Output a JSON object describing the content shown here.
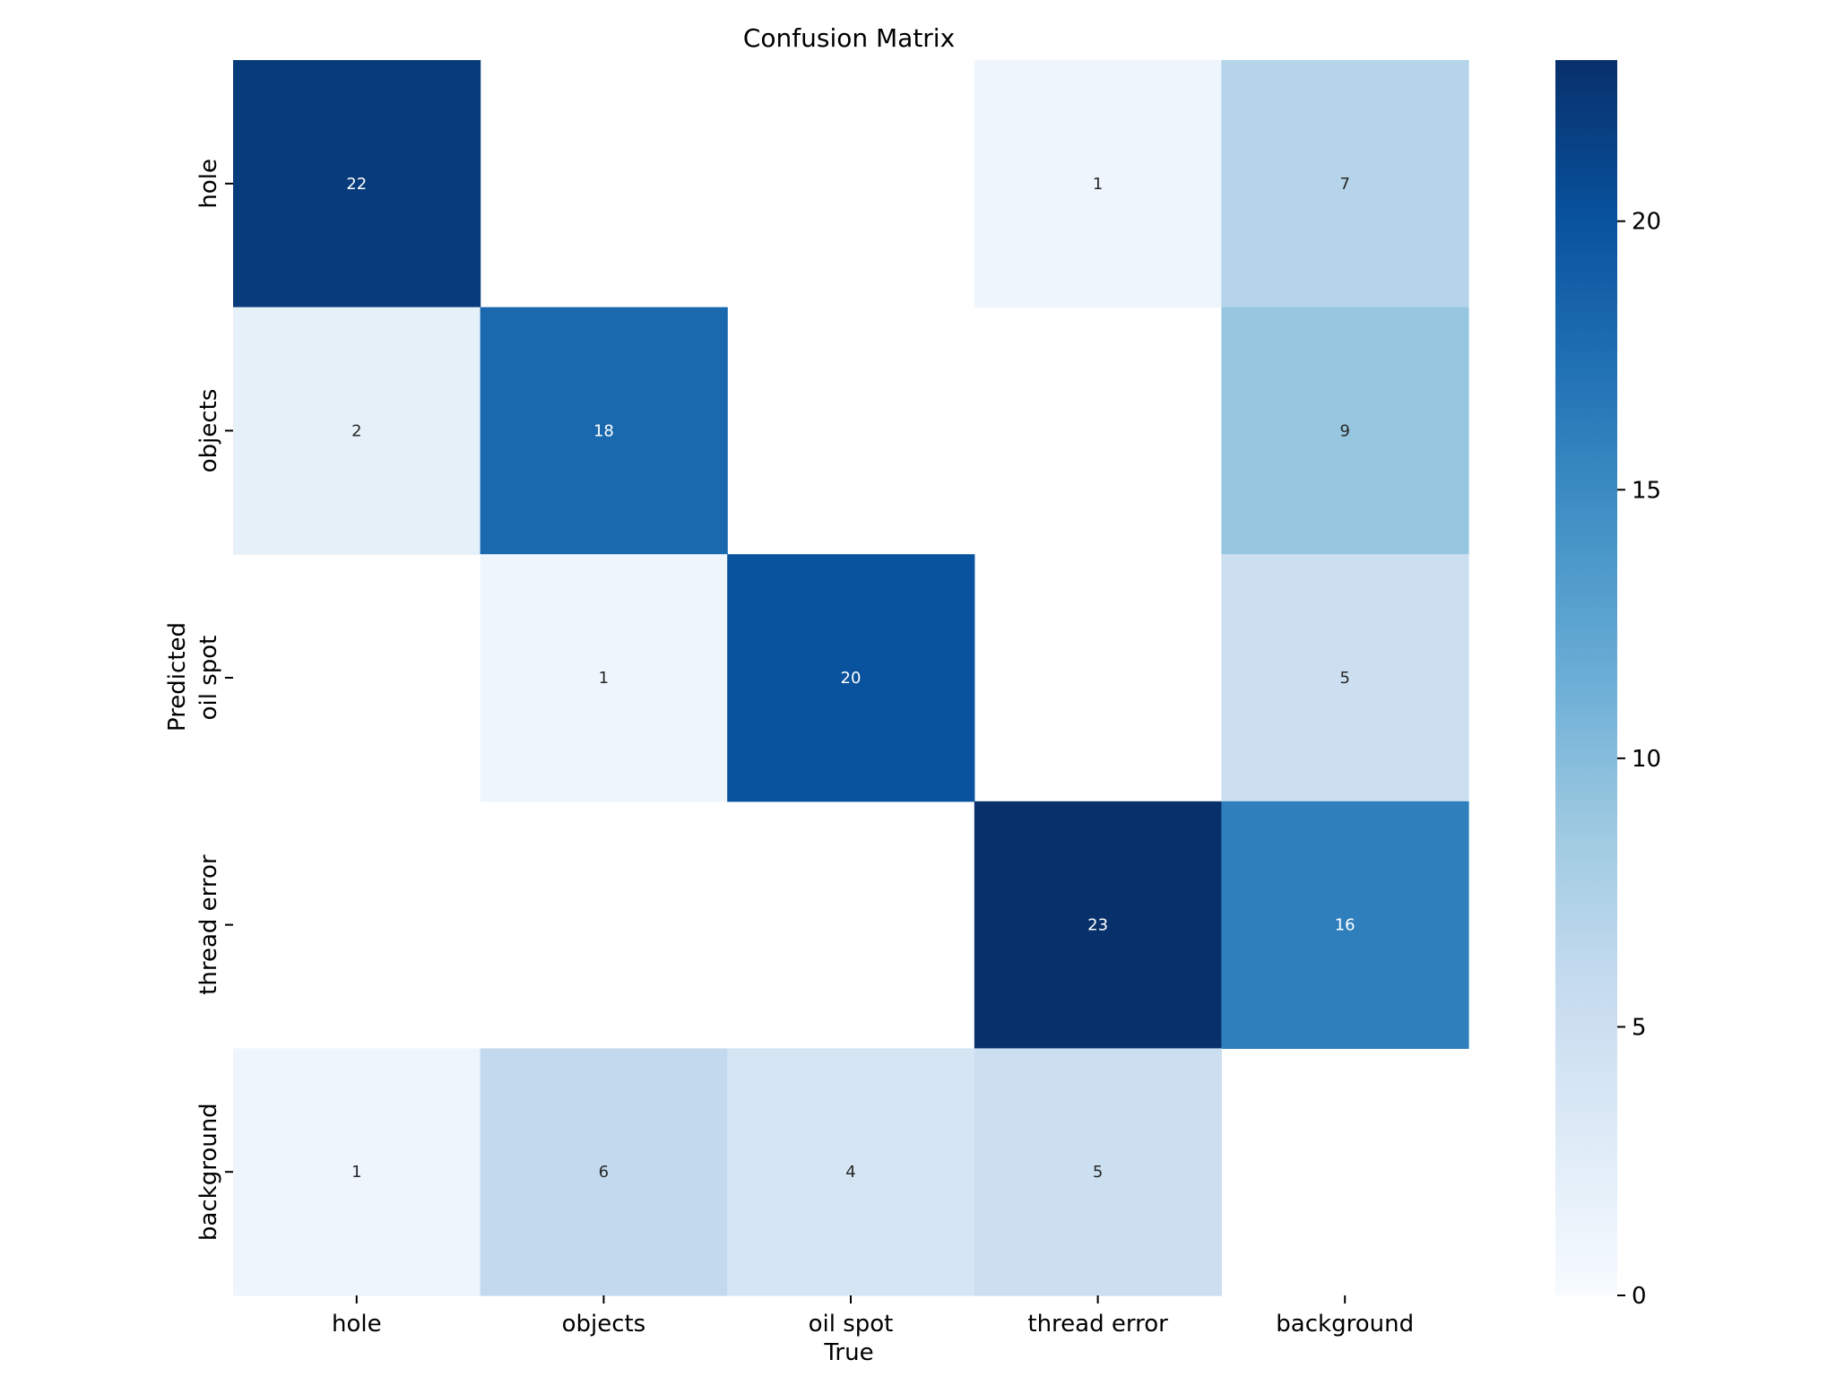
{
  "chart_data": {
    "type": "heatmap",
    "title": "Confusion Matrix",
    "xlabel": "True",
    "ylabel": "Predicted",
    "x_categories": [
      "hole",
      "objects",
      "oil spot",
      "thread error",
      "background"
    ],
    "y_categories": [
      "hole",
      "objects",
      "oil spot",
      "thread error",
      "background"
    ],
    "values": [
      [
        22,
        null,
        null,
        1,
        7
      ],
      [
        2,
        18,
        null,
        null,
        9
      ],
      [
        null,
        1,
        20,
        null,
        5
      ],
      [
        null,
        null,
        null,
        23,
        16
      ],
      [
        1,
        6,
        4,
        5,
        null
      ]
    ],
    "colorbar": {
      "min": 0,
      "max": 23,
      "ticks": [
        0,
        5,
        10,
        15,
        20
      ],
      "colormap": "Blues"
    },
    "grid": false
  }
}
